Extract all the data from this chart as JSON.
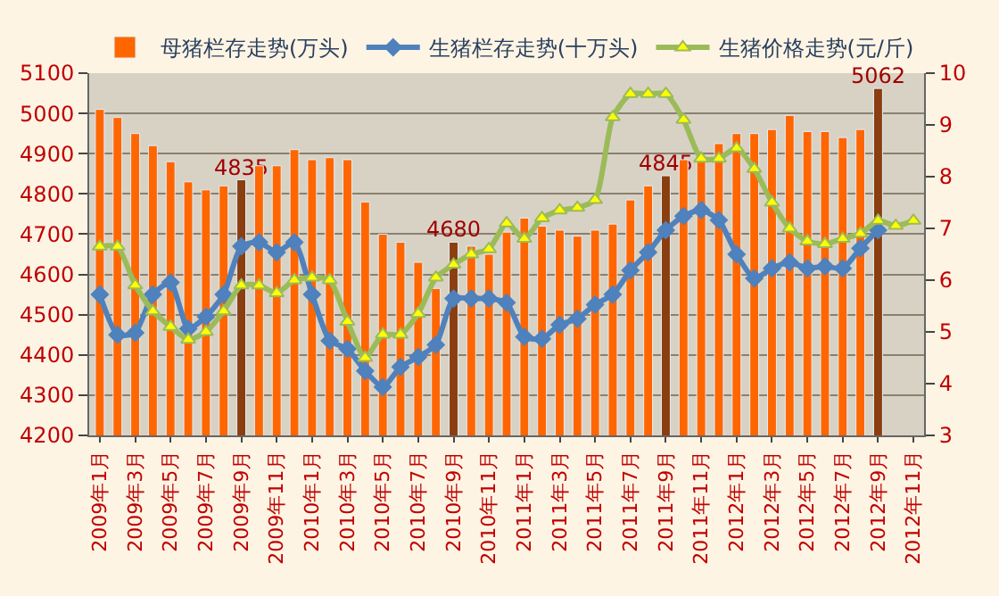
{
  "chart_data": {
    "type": "bar",
    "categories": [
      "2009年1月",
      null,
      "2009年3月",
      null,
      "2009年5月",
      null,
      "2009年7月",
      null,
      "2009年9月",
      null,
      "2009年11月",
      null,
      "2010年1月",
      null,
      "2010年3月",
      null,
      "2010年5月",
      null,
      "2010年7月",
      null,
      "2010年9月",
      null,
      "2010年11月",
      null,
      "2011年1月",
      null,
      "2011年3月",
      null,
      "2011年5月",
      null,
      "2011年7月",
      null,
      "2011年9月",
      null,
      "2011年11月",
      null,
      "2012年1月",
      null,
      "2012年3月",
      null,
      "2012年5月",
      null,
      "2012年7月",
      null,
      "2012年9月",
      null,
      "2012年11月"
    ],
    "series": [
      {
        "name": "母猪栏存走势(万头)",
        "color": "#ff6600",
        "colors": [
          "#ff6600",
          "#ff6600",
          "#ff6600",
          "#ff6600",
          "#ff6600",
          "#ff6600",
          "#ff6600",
          "#ff6600",
          "#8b3e0f",
          "#ff6600",
          "#ff6600",
          "#ff6600",
          "#ff6600",
          "#ff6600",
          "#ff6600",
          "#ff6600",
          "#ff6600",
          "#ff6600",
          "#ff6600",
          "#ff6600",
          "#8b3e0f",
          "#ff6600",
          "#ff6600",
          "#ff6600",
          "#ff6600",
          "#ff6600",
          "#ff6600",
          "#ff6600",
          "#ff6600",
          "#ff6600",
          "#ff6600",
          "#ff6600",
          "#8b3e0f",
          "#ff6600",
          "#ff6600",
          "#ff6600",
          "#ff6600",
          "#ff6600",
          "#ff6600",
          "#ff6600",
          "#ff6600",
          "#ff6600",
          "#ff6600",
          "#ff6600",
          "#8b3e0f",
          "#ff6600",
          "#ff6600"
        ],
        "values": [
          5010,
          4990,
          4950,
          4920,
          4880,
          4830,
          4810,
          4820,
          4835,
          4870,
          4870,
          4910,
          4885,
          4890,
          4885,
          4780,
          4700,
          4680,
          4630,
          4565,
          4680,
          4670,
          4650,
          4705,
          4740,
          4720,
          4710,
          4695,
          4710,
          4725,
          4785,
          4820,
          4845,
          4885,
          4890,
          4925,
          4950,
          4950,
          4960,
          4995,
          4955,
          4955,
          4940,
          4960,
          5062,
          null,
          null
        ],
        "value_labels": [
          null,
          null,
          null,
          null,
          null,
          null,
          null,
          null,
          "4835",
          null,
          null,
          null,
          null,
          null,
          null,
          null,
          null,
          null,
          null,
          null,
          "4680",
          null,
          null,
          null,
          null,
          null,
          null,
          null,
          null,
          null,
          null,
          null,
          "4845",
          null,
          null,
          null,
          null,
          null,
          null,
          null,
          null,
          null,
          null,
          null,
          "5062",
          null,
          null
        ]
      },
      {
        "name": "生猪栏存走势(十万头)",
        "type": "line",
        "color": "#4f81bd",
        "marker": "diamond",
        "axis": "y",
        "values": [
          4550,
          4450,
          4455,
          4550,
          4580,
          4465,
          4495,
          4550,
          4670,
          4680,
          4655,
          4680,
          4550,
          4435,
          4415,
          4360,
          4320,
          4370,
          4395,
          4425,
          4540,
          4540,
          4540,
          4530,
          4445,
          4440,
          4475,
          4490,
          4525,
          4550,
          4610,
          4655,
          4710,
          4745,
          4760,
          4735,
          4650,
          4590,
          4615,
          4630,
          4615,
          4620,
          4615,
          4665,
          4710,
          null,
          null
        ]
      },
      {
        "name": "生猪价格走势(元/斤)",
        "type": "line",
        "color": "#9bbb59",
        "marker": "triangle",
        "axis": "y2",
        "values": [
          6.65,
          6.65,
          5.9,
          5.4,
          5.1,
          4.85,
          5.0,
          5.4,
          5.9,
          5.9,
          5.75,
          6.0,
          6.05,
          6.0,
          5.2,
          4.5,
          4.95,
          4.95,
          5.35,
          6.05,
          6.3,
          6.5,
          6.6,
          7.1,
          6.8,
          7.2,
          7.35,
          7.4,
          7.55,
          9.15,
          9.6,
          9.6,
          9.6,
          9.1,
          8.35,
          8.35,
          8.55,
          8.15,
          7.5,
          7.0,
          6.75,
          6.7,
          6.8,
          6.9,
          7.15,
          7.05,
          7.15
        ]
      }
    ],
    "ylim": [
      4200,
      5100
    ],
    "yticks": [
      4200,
      4300,
      4400,
      4500,
      4600,
      4700,
      4800,
      4900,
      5000,
      5100
    ],
    "y2lim": [
      3,
      10
    ],
    "y2ticks": [
      3,
      4,
      5,
      6,
      7,
      8,
      9,
      10
    ],
    "grid": "y",
    "legend": "top"
  }
}
